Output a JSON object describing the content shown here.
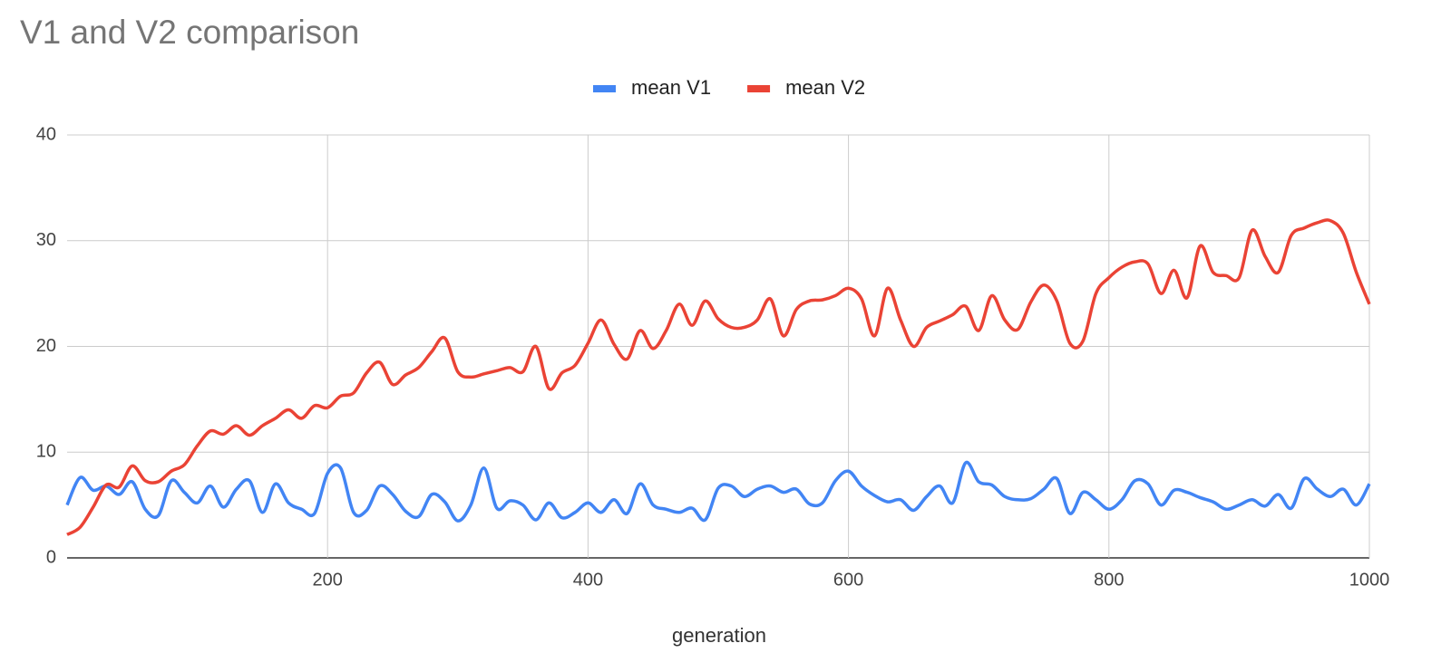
{
  "chart_data": {
    "type": "line",
    "title": "V1 and V2 comparison",
    "x_label": "generation",
    "x": [
      0,
      10,
      20,
      30,
      40,
      50,
      60,
      70,
      80,
      90,
      100,
      110,
      120,
      130,
      140,
      150,
      160,
      170,
      180,
      190,
      200,
      210,
      220,
      230,
      240,
      250,
      260,
      270,
      280,
      290,
      300,
      310,
      320,
      330,
      340,
      350,
      360,
      370,
      380,
      390,
      400,
      410,
      420,
      430,
      440,
      450,
      460,
      470,
      480,
      490,
      500,
      510,
      520,
      530,
      540,
      550,
      560,
      570,
      580,
      590,
      600,
      610,
      620,
      630,
      640,
      650,
      660,
      670,
      680,
      690,
      700,
      710,
      720,
      730,
      740,
      750,
      760,
      770,
      780,
      790,
      800,
      810,
      820,
      830,
      840,
      850,
      860,
      870,
      880,
      890,
      900,
      910,
      920,
      930,
      940,
      950,
      960,
      970,
      980,
      990,
      1000
    ],
    "series": [
      {
        "name": "mean V1",
        "color": "#4285f4",
        "values": [
          5,
          7.6,
          6.4,
          6.8,
          6,
          7.2,
          4.6,
          4,
          7.3,
          6.2,
          5.2,
          6.8,
          4.8,
          6.5,
          7.3,
          4.3,
          7,
          5.2,
          4.6,
          4.2,
          8,
          8.5,
          4.3,
          4.5,
          6.8,
          6,
          4.4,
          3.9,
          6,
          5.3,
          3.5,
          5,
          8.5,
          4.7,
          5.4,
          5,
          3.6,
          5.2,
          3.8,
          4.3,
          5.2,
          4.3,
          5.5,
          4.2,
          7,
          5,
          4.6,
          4.3,
          4.7,
          3.6,
          6.6,
          6.8,
          5.8,
          6.5,
          6.8,
          6.2,
          6.5,
          5.1,
          5.2,
          7.3,
          8.2,
          6.8,
          5.9,
          5.3,
          5.5,
          4.5,
          5.8,
          6.8,
          5.2,
          9,
          7.2,
          6.9,
          5.8,
          5.5,
          5.6,
          6.5,
          7.5,
          4.2,
          6.2,
          5.5,
          4.6,
          5.5,
          7.3,
          7,
          5,
          6.4,
          6.2,
          5.7,
          5.3,
          4.6,
          5,
          5.5,
          4.9,
          6,
          4.7,
          7.5,
          6.5,
          5.8,
          6.5,
          5,
          7
        ]
      },
      {
        "name": "mean V2",
        "color": "#ea4335",
        "values": [
          2.2,
          2.9,
          4.8,
          6.9,
          6.7,
          8.7,
          7.3,
          7.2,
          8.2,
          8.8,
          10.6,
          12,
          11.7,
          12.5,
          11.6,
          12.5,
          13.2,
          14,
          13.2,
          14.4,
          14.2,
          15.3,
          15.6,
          17.5,
          18.5,
          16.4,
          17.3,
          18,
          19.5,
          20.8,
          17.6,
          17.1,
          17.4,
          17.7,
          18,
          17.6,
          20,
          16,
          17.5,
          18.2,
          20.3,
          22.5,
          20.2,
          18.8,
          21.5,
          19.8,
          21.5,
          24,
          22,
          24.3,
          22.6,
          21.8,
          21.8,
          22.5,
          24.5,
          21,
          23.5,
          24.3,
          24.4,
          24.8,
          25.5,
          24.5,
          21,
          25.5,
          22.5,
          20,
          21.8,
          22.4,
          23,
          23.8,
          21.5,
          24.8,
          22.5,
          21.6,
          24.2,
          25.8,
          24.3,
          20.3,
          20.5,
          25,
          26.5,
          27.5,
          28,
          27.8,
          25,
          27.2,
          24.6,
          29.5,
          27,
          26.7,
          26.5,
          31,
          28.5,
          27,
          30.5,
          31.2,
          31.7,
          31.9,
          30.7,
          27,
          24
        ]
      }
    ],
    "xlim": [
      0,
      1000
    ],
    "xticks": [
      200,
      400,
      600,
      800,
      1000
    ],
    "ylim": [
      0,
      40
    ],
    "yticks": [
      0,
      10,
      20,
      30,
      40
    ],
    "grid": true,
    "legend": "top"
  }
}
